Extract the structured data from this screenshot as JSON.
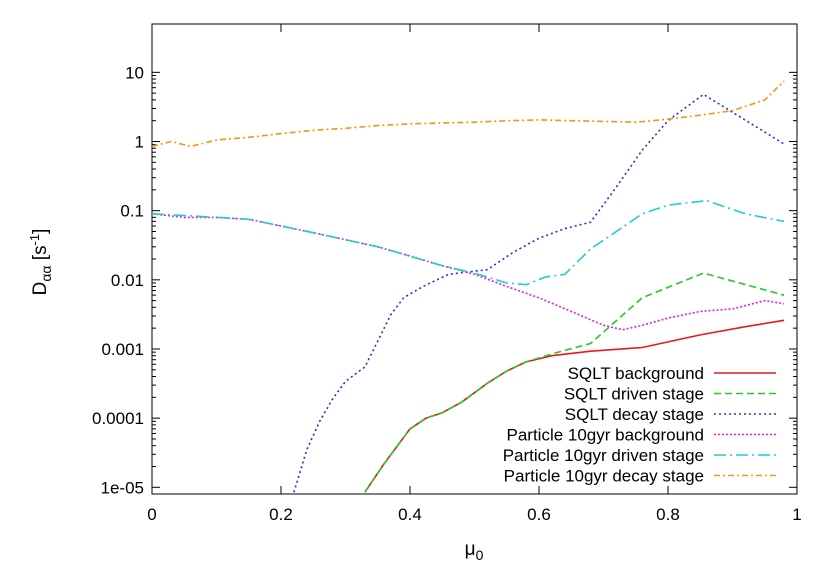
{
  "chart_data": {
    "type": "line",
    "xlabel": "μ",
    "xlabel_sub": "0",
    "ylabel": "D",
    "ylabel_sub": "αα",
    "ylabel_unit_prefix": "[s",
    "ylabel_unit_sup": "-1",
    "ylabel_unit_suffix": "]",
    "xlim": [
      0,
      1
    ],
    "ylim": [
      8e-06,
      50
    ],
    "yscale": "log",
    "grid": false,
    "legend_position": "bottom-right",
    "x_ticks": [
      {
        "value": 0,
        "label": "0"
      },
      {
        "value": 0.2,
        "label": "0.2"
      },
      {
        "value": 0.4,
        "label": "0.4"
      },
      {
        "value": 0.6,
        "label": "0.6"
      },
      {
        "value": 0.8,
        "label": "0.8"
      },
      {
        "value": 1,
        "label": "1"
      }
    ],
    "y_ticks": [
      {
        "value": 1e-05,
        "label": "1e-05"
      },
      {
        "value": 0.0001,
        "label": "0.0001"
      },
      {
        "value": 0.001,
        "label": "0.001"
      },
      {
        "value": 0.01,
        "label": "0.01"
      },
      {
        "value": 0.1,
        "label": "0.1"
      },
      {
        "value": 1,
        "label": "1"
      },
      {
        "value": 10,
        "label": "10"
      }
    ],
    "series": [
      {
        "name": "SQLT background",
        "color": "#e41a1c",
        "dash": "",
        "points": [
          [
            0.33,
            8.5e-06
          ],
          [
            0.36,
            2.2e-05
          ],
          [
            0.4,
            7e-05
          ],
          [
            0.425,
            0.0001
          ],
          [
            0.45,
            0.00012
          ],
          [
            0.48,
            0.00017
          ],
          [
            0.52,
            0.00032
          ],
          [
            0.55,
            0.00048
          ],
          [
            0.58,
            0.00065
          ],
          [
            0.62,
            0.0008
          ],
          [
            0.68,
            0.00093
          ],
          [
            0.76,
            0.00105
          ],
          [
            0.85,
            0.0016
          ],
          [
            0.92,
            0.0021
          ],
          [
            0.98,
            0.0026
          ]
        ]
      },
      {
        "name": "SQLT driven stage",
        "color": "#22cc22",
        "dash": "7,4",
        "points": [
          [
            0.33,
            8.5e-06
          ],
          [
            0.36,
            2.2e-05
          ],
          [
            0.4,
            7e-05
          ],
          [
            0.425,
            0.0001
          ],
          [
            0.45,
            0.00012
          ],
          [
            0.48,
            0.00017
          ],
          [
            0.52,
            0.00032
          ],
          [
            0.55,
            0.00048
          ],
          [
            0.58,
            0.00065
          ],
          [
            0.62,
            0.00085
          ],
          [
            0.68,
            0.0012
          ],
          [
            0.76,
            0.0055
          ],
          [
            0.855,
            0.0125
          ],
          [
            0.98,
            0.006
          ]
        ]
      },
      {
        "name": "SQLT decay stage",
        "color": "#2233cc",
        "dash": "2,3",
        "points": [
          [
            0.22,
            8.5e-06
          ],
          [
            0.24,
            3.5e-05
          ],
          [
            0.26,
            9e-05
          ],
          [
            0.28,
            0.00019
          ],
          [
            0.3,
            0.00034
          ],
          [
            0.33,
            0.00055
          ],
          [
            0.35,
            0.0013
          ],
          [
            0.37,
            0.0031
          ],
          [
            0.39,
            0.0055
          ],
          [
            0.42,
            0.008
          ],
          [
            0.46,
            0.012
          ],
          [
            0.52,
            0.014
          ],
          [
            0.56,
            0.025
          ],
          [
            0.6,
            0.04
          ],
          [
            0.64,
            0.055
          ],
          [
            0.68,
            0.068
          ],
          [
            0.72,
            0.22
          ],
          [
            0.76,
            0.75
          ],
          [
            0.8,
            2.0
          ],
          [
            0.855,
            4.8
          ],
          [
            0.98,
            0.92
          ]
        ]
      },
      {
        "name": "Particle 10gyr background",
        "color": "#dd22dd",
        "dash": "2,2",
        "points": [
          [
            0,
            0.09
          ],
          [
            0.05,
            0.08
          ],
          [
            0.1,
            0.08
          ],
          [
            0.15,
            0.075
          ],
          [
            0.2,
            0.06
          ],
          [
            0.25,
            0.048
          ],
          [
            0.3,
            0.038
          ],
          [
            0.35,
            0.03
          ],
          [
            0.4,
            0.022
          ],
          [
            0.45,
            0.016
          ],
          [
            0.5,
            0.012
          ],
          [
            0.55,
            0.008
          ],
          [
            0.6,
            0.0055
          ],
          [
            0.65,
            0.0035
          ],
          [
            0.7,
            0.0022
          ],
          [
            0.73,
            0.0019
          ],
          [
            0.76,
            0.0022
          ],
          [
            0.8,
            0.0028
          ],
          [
            0.85,
            0.0035
          ],
          [
            0.9,
            0.0038
          ],
          [
            0.95,
            0.005
          ],
          [
            0.98,
            0.0045
          ]
        ]
      },
      {
        "name": "Particle 10gyr driven stage",
        "color": "#22cccc",
        "dash": "12,4,2,4",
        "points": [
          [
            0,
            0.09
          ],
          [
            0.05,
            0.085
          ],
          [
            0.1,
            0.08
          ],
          [
            0.15,
            0.075
          ],
          [
            0.2,
            0.06
          ],
          [
            0.25,
            0.048
          ],
          [
            0.3,
            0.038
          ],
          [
            0.35,
            0.03
          ],
          [
            0.4,
            0.022
          ],
          [
            0.45,
            0.016
          ],
          [
            0.5,
            0.0125
          ],
          [
            0.55,
            0.009
          ],
          [
            0.58,
            0.0085
          ],
          [
            0.61,
            0.011
          ],
          [
            0.64,
            0.012
          ],
          [
            0.68,
            0.028
          ],
          [
            0.72,
            0.05
          ],
          [
            0.76,
            0.09
          ],
          [
            0.8,
            0.12
          ],
          [
            0.86,
            0.14
          ],
          [
            0.92,
            0.09
          ],
          [
            0.98,
            0.07
          ]
        ]
      },
      {
        "name": "Particle 10gyr decay stage",
        "color": "#ee9911",
        "dash": "6,3,2,3",
        "points": [
          [
            0,
            0.85
          ],
          [
            0.03,
            1.0
          ],
          [
            0.06,
            0.85
          ],
          [
            0.1,
            1.05
          ],
          [
            0.15,
            1.15
          ],
          [
            0.2,
            1.3
          ],
          [
            0.25,
            1.45
          ],
          [
            0.3,
            1.55
          ],
          [
            0.35,
            1.7
          ],
          [
            0.4,
            1.8
          ],
          [
            0.45,
            1.85
          ],
          [
            0.5,
            1.9
          ],
          [
            0.55,
            2.0
          ],
          [
            0.6,
            2.05
          ],
          [
            0.65,
            2.0
          ],
          [
            0.7,
            1.95
          ],
          [
            0.75,
            1.9
          ],
          [
            0.8,
            2.1
          ],
          [
            0.85,
            2.4
          ],
          [
            0.9,
            2.8
          ],
          [
            0.95,
            4.0
          ],
          [
            0.98,
            7.5
          ]
        ]
      }
    ]
  }
}
